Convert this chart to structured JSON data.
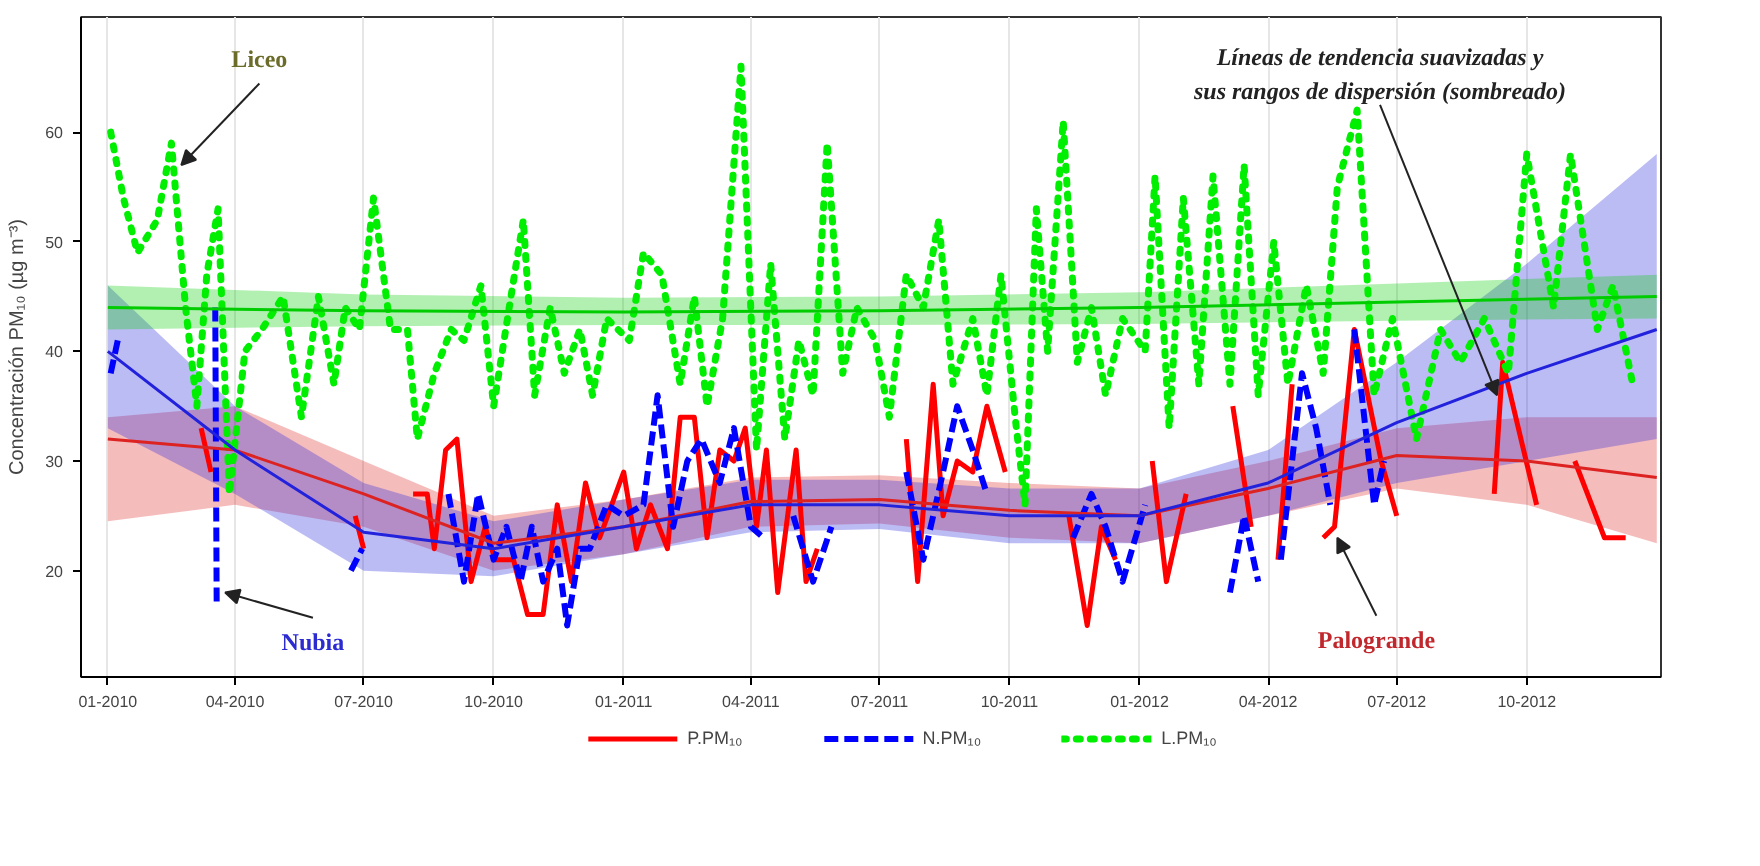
{
  "chart_data": {
    "type": "line",
    "ylabel": "Concentración PM₁₀ (µg m⁻³)",
    "xlim": [
      "2009-12-13",
      "2013-01-04"
    ],
    "xticks": [
      {
        "value": "2010-01-01",
        "label": "01-2010"
      },
      {
        "value": "2010-04-01",
        "label": "04-2010"
      },
      {
        "value": "2010-07-01",
        "label": "07-2010"
      },
      {
        "value": "2010-10-01",
        "label": "10-2010"
      },
      {
        "value": "2011-01-01",
        "label": "01-2011"
      },
      {
        "value": "2011-04-01",
        "label": "04-2011"
      },
      {
        "value": "2011-07-01",
        "label": "07-2011"
      },
      {
        "value": "2011-10-01",
        "label": "10-2011"
      },
      {
        "value": "2012-01-01",
        "label": "01-2012"
      },
      {
        "value": "2012-04-01",
        "label": "04-2012"
      },
      {
        "value": "2012-07-01",
        "label": "07-2012"
      },
      {
        "value": "2012-10-01",
        "label": "10-2012"
      }
    ],
    "ylim": [
      10.3,
      70.5
    ],
    "yticks": [
      20,
      30,
      40,
      50,
      60
    ],
    "grid": "x",
    "legend": "bottom",
    "series": [
      {
        "name": "P.PM₁₀",
        "color": "#ff0000",
        "line_style": "solid",
        "x": [
          "2010-03-08",
          "2010-03-15",
          "2010-03-20",
          "2010-06-25",
          "2010-07-01",
          "2010-07-10",
          "2010-08-05",
          "2010-08-15",
          "2010-08-20",
          "2010-08-28",
          "2010-09-05",
          "2010-09-15",
          "2010-09-25",
          "2010-10-02",
          "2010-10-15",
          "2010-10-25",
          "2010-11-05",
          "2010-11-15",
          "2010-11-25",
          "2010-12-05",
          "2010-12-15",
          "2011-01-01",
          "2011-01-10",
          "2011-01-20",
          "2011-02-01",
          "2011-02-10",
          "2011-02-20",
          "2011-03-01",
          "2011-03-10",
          "2011-03-20",
          "2011-03-28",
          "2011-04-05",
          "2011-04-12",
          "2011-04-20",
          "2011-05-03",
          "2011-05-10",
          "2011-05-18",
          "2011-06-01",
          "2011-07-20",
          "2011-07-28",
          "2011-08-08",
          "2011-08-15",
          "2011-08-25",
          "2011-09-05",
          "2011-09-15",
          "2011-09-28",
          "2011-10-20",
          "2011-11-12",
          "2011-11-25",
          "2011-12-05",
          "2011-12-15",
          "2011-12-25",
          "2012-01-10",
          "2012-01-20",
          "2012-02-03",
          "2012-02-20",
          "2012-03-07",
          "2012-03-20",
          "2012-03-28",
          "2012-04-08",
          "2012-04-18",
          "2012-04-25",
          "2012-05-10",
          "2012-05-18",
          "2012-06-01",
          "2012-06-20",
          "2012-07-01",
          "2012-08-01",
          "2012-09-08",
          "2012-09-14",
          "2012-10-08",
          "2012-10-20",
          "2012-11-04",
          "2012-11-25",
          "2012-12-10"
        ],
        "values": [
          33,
          29,
          null,
          25,
          22,
          null,
          27,
          27,
          22,
          31,
          32,
          19,
          24,
          21,
          21,
          16,
          16,
          26,
          19,
          28,
          23,
          29,
          22,
          26,
          22,
          34,
          34,
          23,
          31,
          30,
          33,
          24,
          31,
          18,
          31,
          19,
          22,
          null,
          32,
          19,
          37,
          25,
          30,
          29,
          35,
          29,
          null,
          25,
          15,
          24,
          21,
          null,
          30,
          19,
          27,
          null,
          35,
          24,
          null,
          21,
          37,
          null,
          23,
          24,
          42,
          30,
          25,
          null,
          27,
          39,
          26,
          null,
          30,
          23,
          23
        ]
      },
      {
        "name": "N.PM₁₀",
        "color": "#0000ff",
        "line_style": "dashed",
        "x": [
          "2010-01-03",
          "2010-01-08",
          "2010-01-20",
          "2010-03-18",
          "2010-03-19",
          "2010-04-01",
          "2010-06-22",
          "2010-06-30",
          "2010-07-15",
          "2010-08-30",
          "2010-09-10",
          "2010-09-20",
          "2010-10-01",
          "2010-10-10",
          "2010-10-20",
          "2010-10-28",
          "2010-11-05",
          "2010-11-15",
          "2010-11-22",
          "2010-12-01",
          "2010-12-08",
          "2010-12-20",
          "2011-01-01",
          "2011-01-15",
          "2011-01-25",
          "2011-02-05",
          "2011-02-15",
          "2011-02-25",
          "2011-03-10",
          "2011-03-20",
          "2011-04-01",
          "2011-04-10",
          "2011-04-20",
          "2011-05-01",
          "2011-05-15",
          "2011-05-28",
          "2011-06-20",
          "2011-07-20",
          "2011-08-01",
          "2011-08-15",
          "2011-08-25",
          "2011-09-05",
          "2011-09-15",
          "2011-10-20",
          "2011-11-15",
          "2011-11-28",
          "2011-12-08",
          "2011-12-20",
          "2012-01-05",
          "2012-01-25",
          "2012-03-05",
          "2012-03-15",
          "2012-03-25",
          "2012-04-02",
          "2012-04-10",
          "2012-04-25",
          "2012-05-05",
          "2012-05-15",
          "2012-05-22",
          "2012-06-01",
          "2012-06-15",
          "2012-06-22"
        ],
        "values": [
          38,
          41,
          null,
          44,
          17,
          null,
          20,
          22,
          null,
          27,
          19,
          27,
          21,
          24,
          19,
          24,
          19,
          22,
          15,
          22,
          22,
          26,
          25,
          26,
          36,
          24,
          30,
          32,
          28,
          33,
          24,
          23,
          null,
          25,
          19,
          24,
          null,
          29,
          21,
          29,
          35,
          31,
          27,
          null,
          23,
          27,
          24,
          19,
          26,
          null,
          18,
          25,
          19,
          null,
          21,
          38,
          33,
          26,
          null,
          42,
          26,
          30
        ]
      },
      {
        "name": "L.PM₁₀",
        "color": "#00ee00",
        "line_style": "dotted",
        "x": [
          "2010-01-03",
          "2010-01-12",
          "2010-01-22",
          "2010-02-05",
          "2010-02-15",
          "2010-02-25",
          "2010-03-05",
          "2010-03-12",
          "2010-03-20",
          "2010-03-28",
          "2010-04-08",
          "2010-04-20",
          "2010-05-05",
          "2010-05-18",
          "2010-05-30",
          "2010-06-10",
          "2010-06-18",
          "2010-06-28",
          "2010-07-08",
          "2010-07-20",
          "2010-08-01",
          "2010-08-08",
          "2010-08-20",
          "2010-09-01",
          "2010-09-10",
          "2010-09-22",
          "2010-10-01",
          "2010-10-12",
          "2010-10-22",
          "2010-10-30",
          "2010-11-10",
          "2010-11-20",
          "2010-12-01",
          "2010-12-10",
          "2010-12-20",
          "2011-01-05",
          "2011-01-15",
          "2011-01-28",
          "2011-02-10",
          "2011-02-20",
          "2011-03-01",
          "2011-03-12",
          "2011-03-25",
          "2011-04-05",
          "2011-04-15",
          "2011-04-25",
          "2011-05-05",
          "2011-05-15",
          "2011-05-25",
          "2011-06-05",
          "2011-06-15",
          "2011-06-28",
          "2011-07-08",
          "2011-07-20",
          "2011-08-01",
          "2011-08-12",
          "2011-08-22",
          "2011-09-05",
          "2011-09-15",
          "2011-09-25",
          "2011-10-05",
          "2011-10-12",
          "2011-10-20",
          "2011-10-28",
          "2011-11-08",
          "2011-11-18",
          "2011-11-28",
          "2011-12-08",
          "2011-12-20",
          "2012-01-05",
          "2012-01-12",
          "2012-01-22",
          "2012-02-01",
          "2012-02-12",
          "2012-02-22",
          "2012-03-05",
          "2012-03-15",
          "2012-03-25",
          "2012-04-05",
          "2012-04-15",
          "2012-04-28",
          "2012-05-10",
          "2012-05-20",
          "2012-06-03",
          "2012-06-15",
          "2012-06-28",
          "2012-07-15",
          "2012-08-01",
          "2012-08-15",
          "2012-09-01",
          "2012-09-18",
          "2012-10-01",
          "2012-10-20",
          "2012-11-01",
          "2012-11-20",
          "2012-12-01",
          "2012-12-15"
        ],
        "values": [
          60,
          54,
          49,
          52,
          59,
          44,
          35,
          47,
          53,
          27,
          40,
          42,
          45,
          34,
          45,
          37,
          44,
          42,
          54,
          42,
          42,
          32,
          38,
          42,
          41,
          46,
          35,
          44,
          52,
          36,
          44,
          38,
          42,
          36,
          43,
          41,
          49,
          47,
          37,
          45,
          35,
          43,
          66,
          31,
          48,
          32,
          41,
          36,
          59,
          38,
          44,
          41,
          34,
          47,
          44,
          52,
          37,
          43,
          36,
          47,
          34,
          26,
          53,
          40,
          61,
          39,
          44,
          36,
          43,
          40,
          56,
          33,
          54,
          37,
          56,
          37,
          57,
          36,
          50,
          37,
          46,
          38,
          55,
          62,
          36,
          43,
          32,
          42,
          39,
          43,
          38,
          58,
          44,
          58,
          42,
          46,
          37
        ]
      },
      {
        "type": "line",
        "color": "#dd2222",
        "x": [
          "2010-01-01",
          "2010-04-01",
          "2010-07-01",
          "2010-10-01",
          "2011-01-01",
          "2011-04-01",
          "2011-07-01",
          "2011-10-01",
          "2012-01-01",
          "2012-04-01",
          "2012-07-01",
          "2012-10-01",
          "2013-01-01"
        ],
        "values": [
          32,
          31,
          27,
          22.5,
          24,
          26.3,
          26.5,
          25.5,
          25,
          27.5,
          30.5,
          30,
          28.5
        ],
        "lower": [
          24.5,
          26,
          24,
          20,
          21.5,
          24,
          24.3,
          23,
          22.5,
          25,
          27.5,
          26,
          22.5
        ],
        "upper": [
          34,
          35,
          30,
          25,
          26.5,
          28.5,
          28.7,
          28,
          27.5,
          30,
          33,
          34,
          34
        ]
      },
      {
        "type": "line",
        "color": "#2222dd",
        "x": [
          "2010-01-01",
          "2010-04-01",
          "2010-07-01",
          "2010-10-01",
          "2011-01-01",
          "2011-04-01",
          "2011-07-01",
          "2011-10-01",
          "2012-01-01",
          "2012-04-01",
          "2012-07-01",
          "2012-10-01",
          "2013-01-01"
        ],
        "values": [
          40,
          31,
          23.5,
          22,
          24,
          26,
          26,
          25,
          25,
          28,
          33.5,
          38,
          42
        ],
        "lower": [
          33,
          27,
          20,
          19.5,
          21.5,
          23.5,
          23.8,
          22.5,
          22.5,
          25,
          28,
          30,
          32
        ],
        "upper": [
          46,
          35,
          28,
          24.5,
          26.5,
          28.3,
          28.3,
          27.5,
          27.5,
          31,
          39,
          48,
          58
        ]
      },
      {
        "type": "line",
        "color": "#00cc00",
        "x": [
          "2010-01-01",
          "2010-07-01",
          "2011-01-01",
          "2011-07-01",
          "2012-01-01",
          "2012-07-01",
          "2013-01-01"
        ],
        "values": [
          44,
          43.7,
          43.6,
          43.7,
          44,
          44.5,
          45
        ],
        "lower": [
          42,
          42.3,
          42.4,
          42.4,
          42.5,
          42.8,
          43
        ],
        "upper": [
          46,
          45.2,
          44.9,
          45,
          45.4,
          46.2,
          47
        ]
      }
    ],
    "annotations": [
      {
        "text": "Liceo",
        "x": "2010-02-22",
        "y": 57
      },
      {
        "text": "Nubia",
        "x": "2010-03-25",
        "y": 18
      },
      {
        "text": "Palogrande",
        "x": "2012-05-20",
        "y": 23
      },
      {
        "text": "Líneas de tendencia suavizadas y sus rangos de dispersión (sombreado)",
        "x": "2012-09-10",
        "y": 36
      }
    ]
  }
}
